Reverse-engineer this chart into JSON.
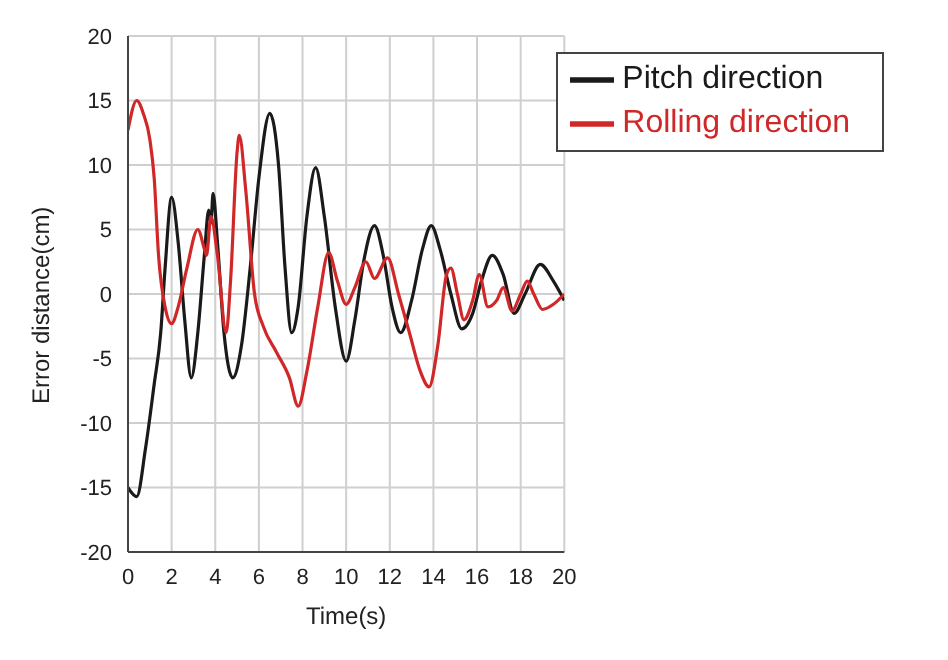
{
  "chart_data": {
    "type": "line",
    "xlabel": "Time(s)",
    "ylabel": "Error distance(cm)",
    "xlim": [
      0,
      20
    ],
    "xticks": [
      0,
      2,
      4,
      6,
      8,
      10,
      12,
      14,
      16,
      18,
      20
    ],
    "ylim": [
      -20,
      20
    ],
    "yticks": [
      -20,
      -15,
      -10,
      -5,
      0,
      5,
      10,
      15,
      20
    ],
    "grid": true,
    "legend": "top right",
    "marker": "none",
    "line_style": "solid",
    "series": [
      {
        "name": "Pitch direction",
        "color": "#1a1a1a",
        "x": [
          0,
          0.4,
          0.8,
          1.2,
          1.5,
          1.7,
          2.0,
          2.3,
          2.6,
          2.9,
          3.2,
          3.5,
          3.7,
          3.8,
          3.9,
          4.1,
          4.4,
          4.8,
          5.2,
          5.6,
          6.0,
          6.5,
          6.9,
          7.2,
          7.5,
          7.8,
          8.2,
          8.6,
          9.0,
          9.5,
          10.0,
          10.4,
          10.8,
          11.3,
          11.7,
          12.1,
          12.5,
          13.0,
          13.5,
          13.9,
          14.3,
          14.8,
          15.3,
          15.8,
          16.2,
          16.7,
          17.2,
          17.7,
          18.2,
          18.9,
          19.5,
          20
        ],
        "values": [
          -15,
          -15.7,
          -12,
          -7,
          -3,
          2,
          7.5,
          4,
          -2,
          -6.5,
          -3,
          3,
          6.5,
          5.5,
          7.8,
          4,
          -3,
          -6.5,
          -4,
          2,
          9,
          14,
          10,
          2,
          -3,
          -1,
          6,
          9.8,
          6,
          -1,
          -5.2,
          -2,
          2.5,
          5.3,
          3,
          -1,
          -3,
          -0.5,
          3.5,
          5.3,
          3.5,
          0,
          -2.7,
          -1.5,
          1,
          3,
          1.5,
          -1.5,
          0,
          2.3,
          1,
          -0.5
        ]
      },
      {
        "name": "Rolling direction",
        "color": "#d02828",
        "x": [
          0,
          0.4,
          0.7,
          1.0,
          1.2,
          1.4,
          1.7,
          2.0,
          2.3,
          2.7,
          3.2,
          3.5,
          3.6,
          3.8,
          4.1,
          4.5,
          4.7,
          5.0,
          5.1,
          5.4,
          5.8,
          6.2,
          6.8,
          7.4,
          7.8,
          8.2,
          8.7,
          9.2,
          9.6,
          10.0,
          10.4,
          10.9,
          11.3,
          11.9,
          12.4,
          12.9,
          13.4,
          13.8,
          14.2,
          14.6,
          14.8,
          15.1,
          15.4,
          15.8,
          16.1,
          16.5,
          16.9,
          17.2,
          17.6,
          18.0,
          18.3,
          18.6,
          19.0,
          19.5,
          20
        ],
        "values": [
          12.7,
          15,
          14,
          12,
          9,
          3,
          -1,
          -2.3,
          -1,
          2,
          5,
          3.5,
          3,
          6,
          3,
          -3,
          1,
          11,
          12.3,
          8,
          0,
          -2.5,
          -4.5,
          -6.5,
          -8.7,
          -6,
          -1,
          3.2,
          1,
          -0.8,
          0.5,
          2.5,
          1.2,
          2.8,
          0,
          -3,
          -6,
          -7.2,
          -4,
          1.5,
          2,
          0,
          -2,
          -0.5,
          1.5,
          -1,
          -0.5,
          0.5,
          -1.3,
          0,
          1,
          0,
          -1.2,
          -0.8,
          0
        ]
      }
    ]
  }
}
